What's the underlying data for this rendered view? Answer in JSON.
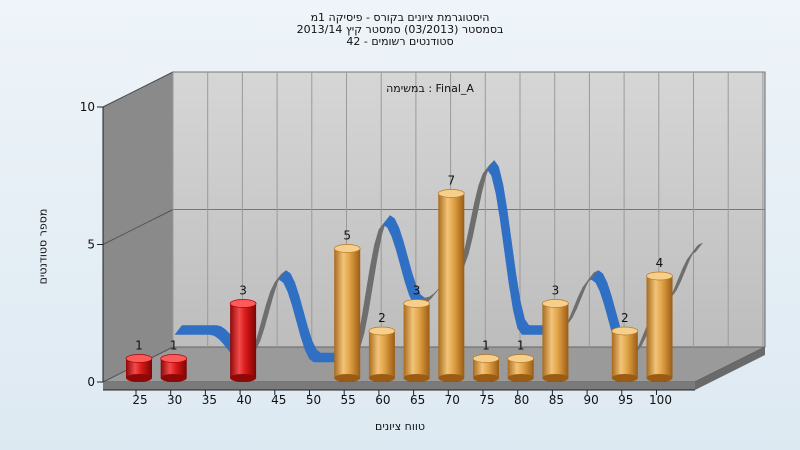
{
  "chart_data": {
    "type": "bar",
    "title_lines": [
      "היסטוגרמת ציונים בקורס - פיסיקה 1מ",
      "בסמסטר (03/2013) סמסטר קיץ 2013/14",
      "42 - סטודנטים רשומים"
    ],
    "inner_label": "במשימה : Final_A",
    "xlabel": "טווח ציונים",
    "ylabel": "מספר סטודנטים",
    "categories": [
      "25",
      "30",
      "35",
      "40",
      "45",
      "50",
      "55",
      "60",
      "65",
      "70",
      "75",
      "80",
      "85",
      "90",
      "95",
      "100"
    ],
    "values": [
      1,
      1,
      0,
      3,
      0,
      0,
      5,
      2,
      3,
      7,
      1,
      1,
      3,
      0,
      2,
      4
    ],
    "bar_colors": [
      "red",
      "red",
      null,
      "red",
      null,
      null,
      "gold",
      "gold",
      "gold",
      "gold",
      "gold",
      "gold",
      "gold",
      null,
      "gold",
      "gold"
    ],
    "yticks": [
      0,
      5,
      10
    ],
    "ylim": [
      0,
      10
    ],
    "grid": true,
    "colors": {
      "red": "#d81818",
      "gold": "#e0a245",
      "curve_blue": "#2f6fc4",
      "curve_gray": "#6e6e6e",
      "plot_back": "#c8c8c8",
      "side_wall": "#8a8a8a"
    }
  }
}
